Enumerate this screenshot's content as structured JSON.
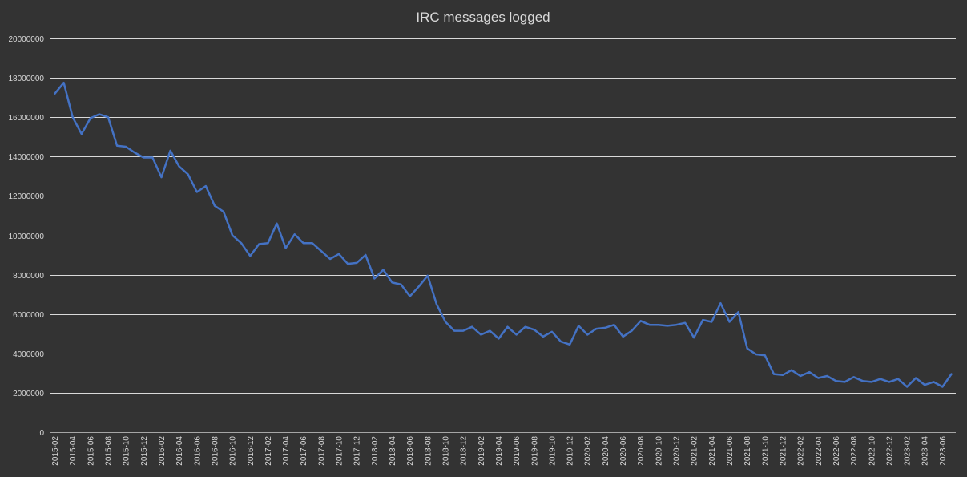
{
  "chart_data": {
    "type": "line",
    "title": "IRC messages logged",
    "xlabel": "",
    "ylabel": "",
    "ylim": [
      0,
      20000000
    ],
    "y_ticks": [
      0,
      2000000,
      4000000,
      6000000,
      8000000,
      10000000,
      12000000,
      14000000,
      16000000,
      18000000,
      20000000
    ],
    "grid": true,
    "legend": "none",
    "line_color": "#4472c4",
    "x_tick_labels": [
      "2015-02",
      "2015-04",
      "2015-06",
      "2015-08",
      "2015-10",
      "2015-12",
      "2016-02",
      "2016-04",
      "2016-06",
      "2016-08",
      "2016-10",
      "2016-12",
      "2017-02",
      "2017-04",
      "2017-06",
      "2017-08",
      "2017-10",
      "2017-12",
      "2018-02",
      "2018-04",
      "2018-06",
      "2018-08",
      "2018-10",
      "2018-12",
      "2019-02",
      "2019-04",
      "2019-06",
      "2019-08",
      "2019-10",
      "2019-12",
      "2020-02",
      "2020-04",
      "2020-06",
      "2020-08",
      "2020-10",
      "2020-12",
      "2021-02",
      "2021-04",
      "2021-06",
      "2021-08",
      "2021-10",
      "2021-12",
      "2022-02",
      "2022-04",
      "2022-06",
      "2022-08",
      "2022-10",
      "2022-12",
      "2023-02",
      "2023-04",
      "2023-06"
    ],
    "x": [
      "2015-02",
      "2015-03",
      "2015-04",
      "2015-05",
      "2015-06",
      "2015-07",
      "2015-08",
      "2015-09",
      "2015-10",
      "2015-11",
      "2015-12",
      "2016-01",
      "2016-02",
      "2016-03",
      "2016-04",
      "2016-05",
      "2016-06",
      "2016-07",
      "2016-08",
      "2016-09",
      "2016-10",
      "2016-11",
      "2016-12",
      "2017-01",
      "2017-02",
      "2017-03",
      "2017-04",
      "2017-05",
      "2017-06",
      "2017-07",
      "2017-08",
      "2017-09",
      "2017-10",
      "2017-11",
      "2017-12",
      "2018-01",
      "2018-02",
      "2018-03",
      "2018-04",
      "2018-05",
      "2018-06",
      "2018-07",
      "2018-08",
      "2018-09",
      "2018-10",
      "2018-11",
      "2018-12",
      "2019-01",
      "2019-02",
      "2019-03",
      "2019-04",
      "2019-05",
      "2019-06",
      "2019-07",
      "2019-08",
      "2019-09",
      "2019-10",
      "2019-11",
      "2019-12",
      "2020-01",
      "2020-02",
      "2020-03",
      "2020-04",
      "2020-05",
      "2020-06",
      "2020-07",
      "2020-08",
      "2020-09",
      "2020-10",
      "2020-11",
      "2020-12",
      "2021-01",
      "2021-02",
      "2021-03",
      "2021-04",
      "2021-05",
      "2021-06",
      "2021-07",
      "2021-08",
      "2021-09",
      "2021-10",
      "2021-11",
      "2021-12",
      "2022-01",
      "2022-02",
      "2022-03",
      "2022-04",
      "2022-05",
      "2022-06",
      "2022-07",
      "2022-08",
      "2022-09",
      "2022-10",
      "2022-11",
      "2022-12",
      "2023-01",
      "2023-02",
      "2023-03",
      "2023-04",
      "2023-05",
      "2023-06",
      "2023-07"
    ],
    "series": [
      {
        "values": [
          17200000,
          17750000,
          16000000,
          15150000,
          15950000,
          16150000,
          16000000,
          14550000,
          14500000,
          14200000,
          13950000,
          13950000,
          12950000,
          14300000,
          13500000,
          13100000,
          12200000,
          12500000,
          11500000,
          11200000,
          10000000,
          9600000,
          8950000,
          9550000,
          9600000,
          10600000,
          9350000,
          10050000,
          9600000,
          9600000,
          9200000,
          8800000,
          9050000,
          8550000,
          8600000,
          9000000,
          7800000,
          8250000,
          7600000,
          7500000,
          6900000,
          7400000,
          7950000,
          6500000,
          5600000,
          5150000,
          5150000,
          5350000,
          4950000,
          5150000,
          4750000,
          5350000,
          4950000,
          5350000,
          5200000,
          4850000,
          5100000,
          4600000,
          4450000,
          5400000,
          4950000,
          5250000,
          5300000,
          5450000,
          4850000,
          5150000,
          5650000,
          5450000,
          5450000,
          5400000,
          5450000,
          5550000,
          4800000,
          5700000,
          5600000,
          6550000,
          5600000,
          6100000,
          4250000,
          3950000,
          3900000,
          2950000,
          2900000,
          3150000,
          2850000,
          3050000,
          2750000,
          2850000,
          2600000,
          2550000,
          2800000,
          2600000,
          2550000,
          2700000,
          2550000,
          2700000,
          2300000,
          2750000,
          2400000,
          2550000,
          2300000,
          2950000
        ]
      }
    ]
  }
}
